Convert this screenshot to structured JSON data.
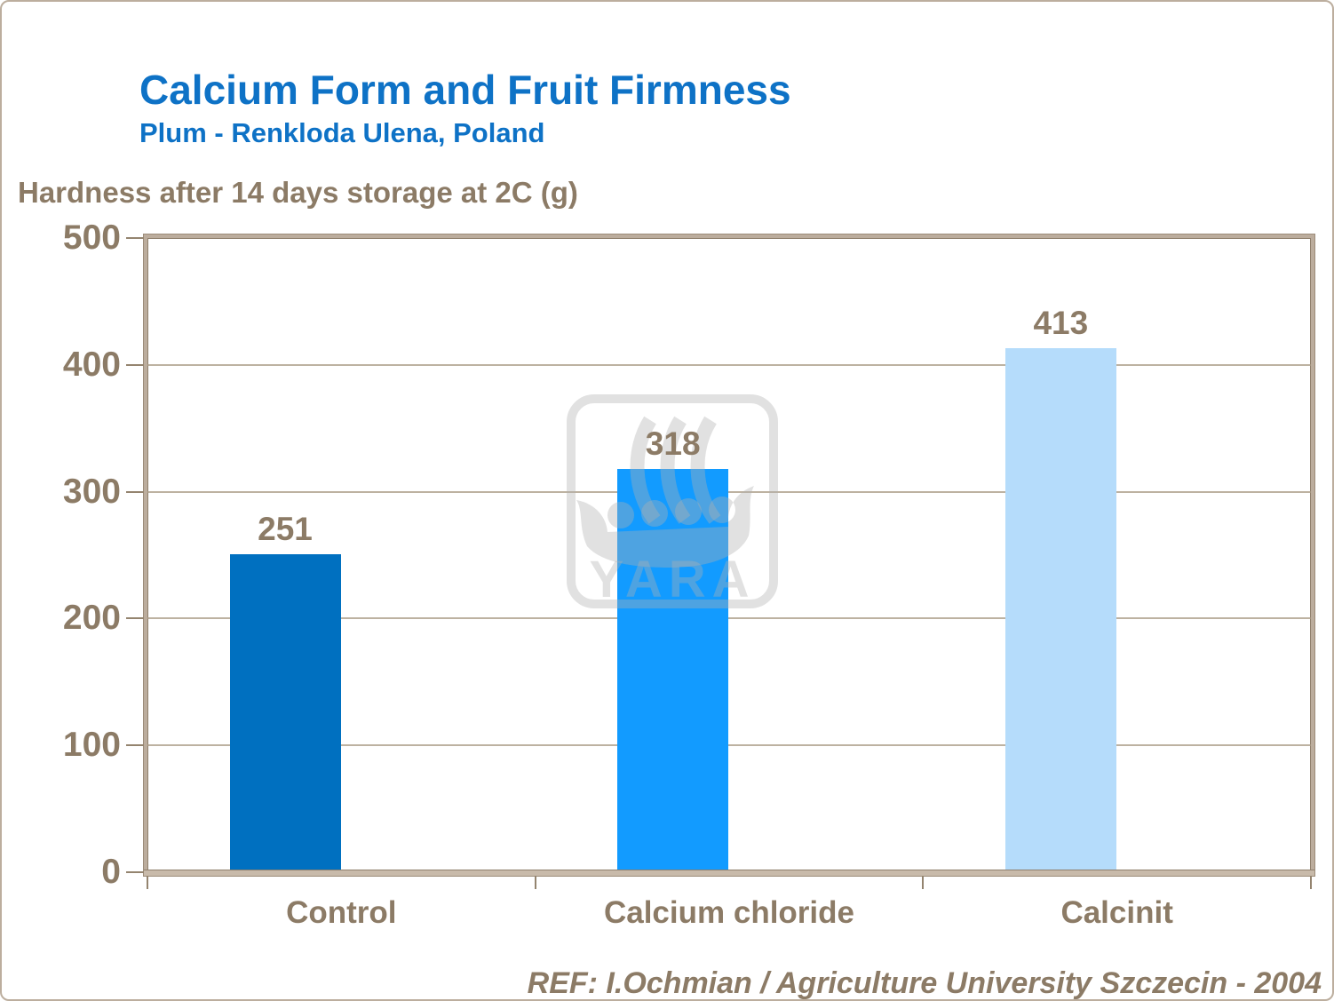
{
  "title": "Calcium Form and Fruit Firmness",
  "subtitle": "Plum - Renkloda Ulena, Poland",
  "footer": "REF: I.Ochmian / Agriculture University Szczecin - 2004",
  "watermark": {
    "label": "YARA"
  },
  "colors": {
    "title_blue": "#0E72C6",
    "text_brown": "#8C7B66",
    "axis_tan": "#BCAD9D",
    "gridline_tan": "#A79882",
    "bar_control": "#0070C0",
    "bar_calcium_chloride": "#129BFF",
    "bar_calcinit": "#B5DCFB",
    "watermark_gray": "rgba(176,176,176,0.38)"
  },
  "chart_data": {
    "type": "bar",
    "title": "Hardness after 14 days storage at 2C (g)",
    "categories": [
      "Control",
      "Calcium chloride",
      "Calcinit"
    ],
    "values": [
      251,
      318,
      413
    ],
    "data_labels": [
      "251",
      "318",
      "413"
    ],
    "bar_colors": [
      "#0070C0",
      "#129BFF",
      "#B5DCFB"
    ],
    "xlabel": "",
    "ylabel": "Hardness after 14 days storage at 2C (g)",
    "ylim": [
      0,
      500
    ],
    "yticks": [
      0,
      100,
      200,
      300,
      400,
      500
    ],
    "grid": true,
    "legend": false
  }
}
